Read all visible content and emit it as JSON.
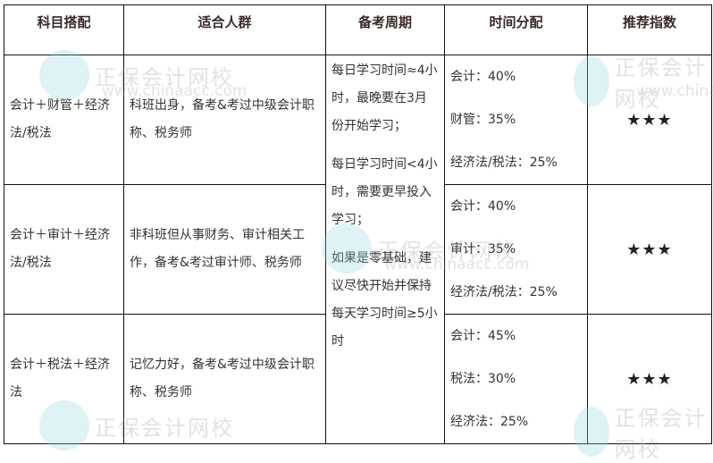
{
  "watermark": {
    "name": "正保会计网校",
    "url": "www.chinaacc.com"
  },
  "headers": [
    "科目搭配",
    "适合人群",
    "备考周期",
    "时间分配",
    "推荐指数"
  ],
  "period": [
    "每日学习时间≈4小时，最晚要在3月份开始学习；",
    "每日学习时间<4小时，需要更早投入学习；",
    "如果是零基础，建议尽快开始并保持每天学习时间≥5小时"
  ],
  "rows": [
    {
      "combo": "会计＋财管＋经济法/税法",
      "audience": "科班出身，备考&考过中级会计职称、税务师",
      "time": [
        "会计：40%",
        "财管：35%",
        "经济法/税法：25%"
      ],
      "rating": "★★★"
    },
    {
      "combo": "会计＋审计＋经济法/税法",
      "audience": "非科班但从事财务、审计相关工作，备考&考过审计师、税务师",
      "time": [
        "会计：40%",
        "审计：35%",
        "经济法/税法：25%"
      ],
      "rating": "★★★"
    },
    {
      "combo": "会计＋税法＋经济法",
      "audience": "记忆力好，备考&考过中级会计职称、税务师",
      "time": [
        "会计：45%",
        "税法：30%",
        "经济法：25%"
      ],
      "rating": "★★★"
    }
  ]
}
